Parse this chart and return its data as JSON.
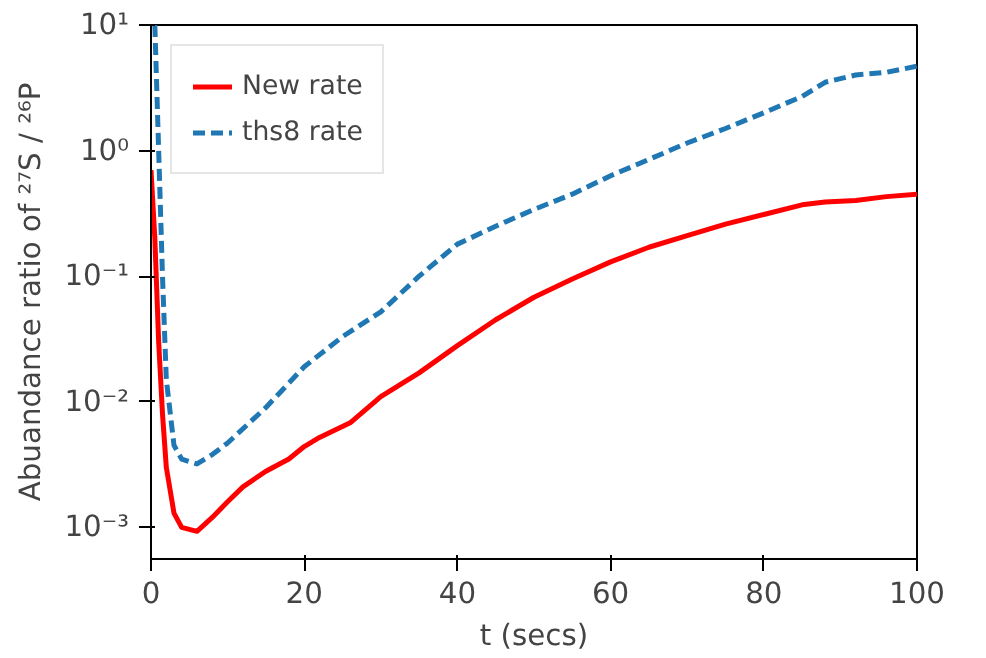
{
  "chart_data": {
    "type": "line",
    "xlabel": "t (secs)",
    "ylabel": "Abuandance ratio of ²⁷S / ²⁶P",
    "log": "y",
    "grid": false,
    "legend": "top left",
    "xlim": [
      0,
      100
    ],
    "xticks": [
      0,
      20,
      40,
      60,
      80,
      100
    ],
    "ylim": [
      0.00056,
      10
    ],
    "yticks": [
      {
        "value": 0.001,
        "label": "10⁻³"
      },
      {
        "value": 0.01,
        "label": "10⁻²"
      },
      {
        "value": 0.1,
        "label": "10⁻¹"
      },
      {
        "value": 1,
        "label": "10⁰"
      },
      {
        "value": 10,
        "label": "10¹"
      }
    ],
    "series": [
      {
        "name": "New rate",
        "color": "#ff0000",
        "line_style": "solid",
        "x": [
          0,
          0.5,
          1,
          1.5,
          2,
          3,
          4,
          6,
          8,
          10,
          12,
          15,
          18,
          20,
          22,
          26,
          30,
          35,
          40,
          45,
          50,
          55,
          60,
          65,
          70,
          75,
          80,
          85,
          88,
          92,
          96,
          100
        ],
        "values": [
          0.7,
          0.2,
          0.03,
          0.008,
          0.003,
          0.0013,
          0.001,
          0.00093,
          0.0012,
          0.0016,
          0.0021,
          0.0028,
          0.0035,
          0.0044,
          0.0052,
          0.0068,
          0.011,
          0.017,
          0.028,
          0.045,
          0.068,
          0.095,
          0.13,
          0.17,
          0.21,
          0.26,
          0.31,
          0.37,
          0.39,
          0.4,
          0.43,
          0.45
        ]
      },
      {
        "name": "ths8 rate",
        "color": "#1f77b4",
        "line_style": "dashed",
        "x": [
          0.5,
          1,
          1.5,
          2,
          3,
          4,
          6,
          8,
          10,
          15,
          20,
          25,
          30,
          35,
          40,
          45,
          50,
          55,
          60,
          65,
          70,
          75,
          80,
          85,
          88,
          92,
          96,
          100
        ],
        "values": [
          10,
          1,
          0.1,
          0.015,
          0.0045,
          0.0035,
          0.0032,
          0.0038,
          0.0047,
          0.009,
          0.019,
          0.033,
          0.052,
          0.1,
          0.18,
          0.25,
          0.34,
          0.45,
          0.63,
          0.85,
          1.15,
          1.5,
          2.0,
          2.7,
          3.5,
          4.0,
          4.2,
          4.7
        ]
      }
    ]
  }
}
